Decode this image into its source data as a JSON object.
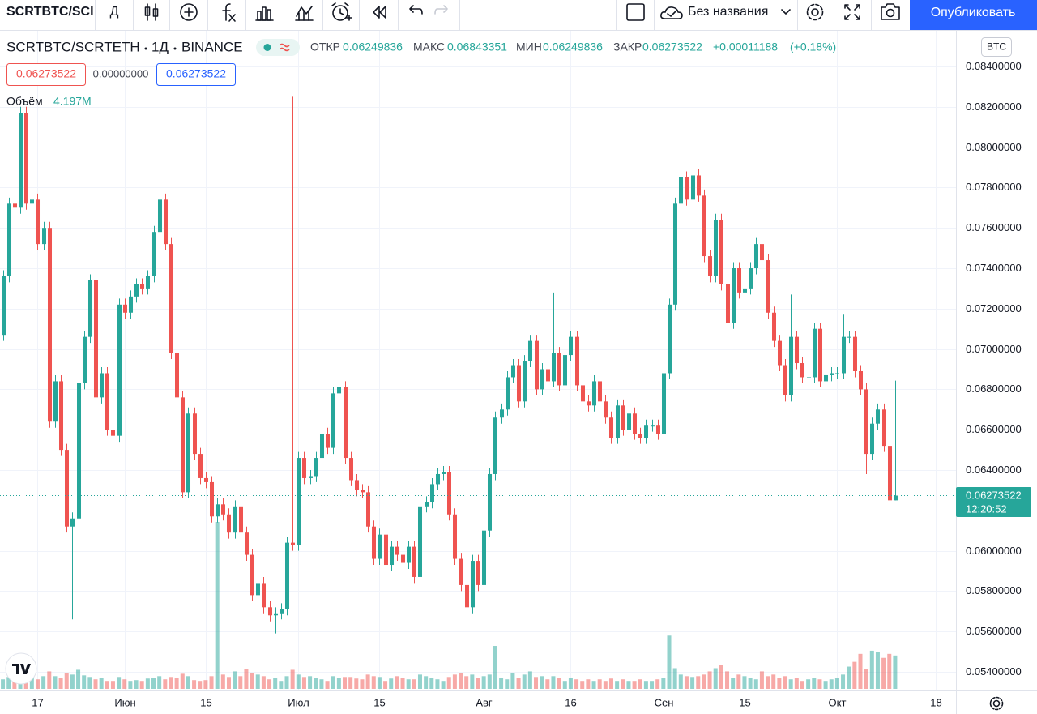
{
  "toolbar": {
    "symbol": "SCRTBTC/SCI",
    "interval": "Д",
    "layout_name": "Без названия",
    "publish": "Опубликовать"
  },
  "legend": {
    "symbol": "SCRTBTC/SCRTETH",
    "interval": "1Д",
    "exchange": "BINANCE",
    "open_label": "ОТКР",
    "open": "0.06249836",
    "high_label": "МАКС",
    "high": "0.06843351",
    "low_label": "МИН",
    "low": "0.06249836",
    "close_label": "ЗАКР",
    "close": "0.06273522",
    "change": "+0.00011188",
    "change_pct": "(+0.18%)",
    "price_boxes": [
      "0.06273522",
      "0.00000000",
      "0.06273522"
    ],
    "volume_label": "Объём",
    "volume": "4.197M"
  },
  "currency": "BTC",
  "last_price": {
    "price": "0.06273522",
    "countdown": "12:20:52"
  },
  "chart_data": {
    "type": "candlestick",
    "grid": true,
    "up_color": "#26a69a",
    "down_color": "#ef5350",
    "xlim": [
      -0.5,
      164.5
    ],
    "xticks": [
      {
        "value": 6,
        "label": "17"
      },
      {
        "value": 21,
        "label": "Июн"
      },
      {
        "value": 35,
        "label": "15"
      },
      {
        "value": 51,
        "label": "Июл"
      },
      {
        "value": 65,
        "label": "15"
      },
      {
        "value": 83,
        "label": "Авг"
      },
      {
        "value": 98,
        "label": "16"
      },
      {
        "value": 114,
        "label": "Сен"
      },
      {
        "value": 128,
        "label": "15"
      },
      {
        "value": 144,
        "label": "Окт"
      },
      {
        "value": 161,
        "label": "18"
      }
    ],
    "ylim": [
      0.053076,
      0.085767
    ],
    "yticks": [
      {
        "value": 0.054,
        "label": "0.05400000"
      },
      {
        "value": 0.056,
        "label": "0.05600000"
      },
      {
        "value": 0.058,
        "label": "0.05800000"
      },
      {
        "value": 0.06,
        "label": "0.06000000"
      },
      {
        "value": 0.062,
        "label": "0.06200000"
      },
      {
        "value": 0.064,
        "label": "0.06400000"
      },
      {
        "value": 0.066,
        "label": "0.06600000"
      },
      {
        "value": 0.068,
        "label": "0.06800000"
      },
      {
        "value": 0.07,
        "label": "0.07000000"
      },
      {
        "value": 0.072,
        "label": "0.07200000"
      },
      {
        "value": 0.074,
        "label": "0.07400000"
      },
      {
        "value": 0.076,
        "label": "0.07600000"
      },
      {
        "value": 0.078,
        "label": "0.07800000"
      },
      {
        "value": 0.08,
        "label": "0.08000000"
      },
      {
        "value": 0.082,
        "label": "0.08200000"
      },
      {
        "value": 0.084,
        "label": "0.08400000"
      }
    ],
    "open": [
      0.0707,
      0.0736,
      0.0772,
      0.077,
      0.0817,
      0.0772,
      0.0774,
      0.0752,
      0.076,
      0.0664,
      0.0684,
      0.065,
      0.0612,
      0.0616,
      0.0683,
      0.0706,
      0.0734,
      0.0676,
      0.0688,
      0.066,
      0.0657,
      0.0722,
      0.0718,
      0.0726,
      0.0732,
      0.073,
      0.0736,
      0.0758,
      0.0774,
      0.0752,
      0.0698,
      0.0676,
      0.0629,
      0.0668,
      0.0648,
      0.0636,
      0.0634,
      0.0617,
      0.0623,
      0.0618,
      0.0609,
      0.0622,
      0.0609,
      0.0598,
      0.0578,
      0.0584,
      0.0572,
      0.0568,
      0.0569,
      0.0571,
      0.0604,
      0.0603,
      0.0646,
      0.0636,
      0.0637,
      0.0646,
      0.0658,
      0.0651,
      0.0678,
      0.0681,
      0.0646,
      0.0635,
      0.063,
      0.0629,
      0.0612,
      0.0596,
      0.0608,
      0.0593,
      0.0602,
      0.0598,
      0.0594,
      0.0602,
      0.0587,
      0.0622,
      0.0624,
      0.0633,
      0.0638,
      0.0639,
      0.0618,
      0.0596,
      0.0583,
      0.0572,
      0.0595,
      0.0583,
      0.061,
      0.0638,
      0.0666,
      0.067,
      0.0686,
      0.0692,
      0.0674,
      0.0694,
      0.0704,
      0.068,
      0.069,
      0.0684,
      0.0698,
      0.0682,
      0.0697,
      0.0706,
      0.0682,
      0.0674,
      0.0672,
      0.0684,
      0.0674,
      0.0666,
      0.0656,
      0.0672,
      0.066,
      0.0668,
      0.0658,
      0.0656,
      0.0662,
      0.0662,
      0.0658,
      0.0688,
      0.0722,
      0.0772,
      0.0785,
      0.0774,
      0.0786,
      0.0776,
      0.0746,
      0.0736,
      0.0764,
      0.0732,
      0.0713,
      0.074,
      0.0728,
      0.073,
      0.074,
      0.0752,
      0.0744,
      0.0718,
      0.0704,
      0.0692,
      0.0677,
      0.0706,
      0.0693,
      0.0686,
      0.0686,
      0.071,
      0.0684,
      0.0687,
      0.0688,
      0.0688,
      0.0706,
      0.0706,
      0.0689,
      0.068,
      0.0648,
      0.0663,
      0.067,
      0.0652,
      0.06249836
    ],
    "high": [
      0.0739,
      0.0775,
      0.0775,
      0.082,
      0.082,
      0.0777,
      0.0777,
      0.0763,
      0.0763,
      0.0687,
      0.0687,
      0.0653,
      0.0619,
      0.0686,
      0.0709,
      0.0737,
      0.0737,
      0.0691,
      0.0691,
      0.0663,
      0.0725,
      0.0725,
      0.0729,
      0.0735,
      0.0735,
      0.0739,
      0.0761,
      0.0777,
      0.0777,
      0.0755,
      0.0701,
      0.0679,
      0.0671,
      0.0671,
      0.0651,
      0.0639,
      0.0637,
      0.0626,
      0.0626,
      0.0621,
      0.0625,
      0.0625,
      0.0612,
      0.0601,
      0.0587,
      0.0587,
      0.0575,
      0.0572,
      0.0574,
      0.0607,
      0.0825,
      0.0649,
      0.0649,
      0.064,
      0.0649,
      0.0661,
      0.0661,
      0.0681,
      0.0684,
      0.0684,
      0.0649,
      0.0638,
      0.0633,
      0.0632,
      0.0615,
      0.0611,
      0.0611,
      0.0605,
      0.0605,
      0.0601,
      0.0605,
      0.0605,
      0.0625,
      0.0627,
      0.0636,
      0.0641,
      0.0642,
      0.0642,
      0.0621,
      0.0599,
      0.0586,
      0.0598,
      0.0598,
      0.0613,
      0.0641,
      0.0669,
      0.0673,
      0.0689,
      0.0695,
      0.0695,
      0.0697,
      0.0707,
      0.0707,
      0.0693,
      0.0693,
      0.0728,
      0.0701,
      0.07,
      0.0709,
      0.0709,
      0.0685,
      0.0677,
      0.0687,
      0.0687,
      0.0677,
      0.0669,
      0.0675,
      0.0675,
      0.0671,
      0.0671,
      0.0661,
      0.0665,
      0.0665,
      0.0665,
      0.0691,
      0.0725,
      0.0775,
      0.0788,
      0.0788,
      0.0789,
      0.0789,
      0.0779,
      0.0749,
      0.0767,
      0.0767,
      0.0735,
      0.0743,
      0.0743,
      0.0733,
      0.0743,
      0.0755,
      0.0755,
      0.0747,
      0.0721,
      0.0707,
      0.0695,
      0.0727,
      0.0709,
      0.0696,
      0.0689,
      0.0713,
      0.0713,
      0.069,
      0.0691,
      0.0691,
      0.0717,
      0.0709,
      0.0709,
      0.0692,
      0.0683,
      0.0666,
      0.0673,
      0.0673,
      0.0655,
      0.06843351
    ],
    "low": [
      0.0704,
      0.0733,
      0.0767,
      0.0767,
      0.0769,
      0.0769,
      0.0749,
      0.0749,
      0.0661,
      0.0661,
      0.0647,
      0.0609,
      0.0566,
      0.0613,
      0.068,
      0.0703,
      0.0673,
      0.0673,
      0.0657,
      0.0654,
      0.0654,
      0.0715,
      0.0715,
      0.0723,
      0.0727,
      0.0727,
      0.0733,
      0.0755,
      0.0749,
      0.0695,
      0.0673,
      0.0626,
      0.0626,
      0.0645,
      0.0633,
      0.0631,
      0.0614,
      0.0614,
      0.0615,
      0.0606,
      0.0606,
      0.0606,
      0.0595,
      0.0575,
      0.0575,
      0.0569,
      0.0565,
      0.0559,
      0.0566,
      0.0568,
      0.06,
      0.06,
      0.0633,
      0.0633,
      0.0634,
      0.0643,
      0.0648,
      0.0648,
      0.0675,
      0.0643,
      0.0632,
      0.0627,
      0.0626,
      0.0609,
      0.0593,
      0.0593,
      0.059,
      0.059,
      0.0595,
      0.0591,
      0.0591,
      0.0584,
      0.0584,
      0.0619,
      0.0621,
      0.063,
      0.0635,
      0.0615,
      0.0593,
      0.058,
      0.0569,
      0.0569,
      0.058,
      0.058,
      0.0607,
      0.0635,
      0.0663,
      0.0667,
      0.0683,
      0.0671,
      0.0671,
      0.0691,
      0.0677,
      0.0677,
      0.0681,
      0.0681,
      0.0679,
      0.0679,
      0.0694,
      0.0679,
      0.0671,
      0.0669,
      0.0669,
      0.0671,
      0.0663,
      0.0653,
      0.0653,
      0.0657,
      0.0657,
      0.0655,
      0.0653,
      0.0653,
      0.0659,
      0.0655,
      0.0655,
      0.0685,
      0.0719,
      0.0769,
      0.0771,
      0.0771,
      0.0773,
      0.0743,
      0.0733,
      0.0733,
      0.0729,
      0.071,
      0.071,
      0.0725,
      0.0725,
      0.0727,
      0.0737,
      0.0741,
      0.0715,
      0.0701,
      0.0689,
      0.0674,
      0.0674,
      0.069,
      0.0683,
      0.0683,
      0.0683,
      0.0681,
      0.0681,
      0.0684,
      0.0685,
      0.0685,
      0.0703,
      0.0686,
      0.0677,
      0.0638,
      0.0645,
      0.066,
      0.0649,
      0.0622,
      0.06249836
    ],
    "close": [
      0.0736,
      0.0772,
      0.077,
      0.0817,
      0.0772,
      0.0774,
      0.0752,
      0.076,
      0.0664,
      0.0684,
      0.065,
      0.0612,
      0.0616,
      0.0683,
      0.0706,
      0.0734,
      0.0676,
      0.0688,
      0.066,
      0.0657,
      0.0722,
      0.0718,
      0.0726,
      0.0732,
      0.073,
      0.0736,
      0.0758,
      0.0774,
      0.0752,
      0.0698,
      0.0676,
      0.0629,
      0.0668,
      0.0648,
      0.0636,
      0.0634,
      0.0617,
      0.0623,
      0.0618,
      0.0609,
      0.0622,
      0.0609,
      0.0598,
      0.0578,
      0.0584,
      0.0572,
      0.0568,
      0.0569,
      0.0571,
      0.0604,
      0.0603,
      0.0646,
      0.0636,
      0.0637,
      0.0646,
      0.0658,
      0.0651,
      0.0678,
      0.0681,
      0.0646,
      0.0635,
      0.063,
      0.0629,
      0.0612,
      0.0596,
      0.0608,
      0.0593,
      0.0602,
      0.0598,
      0.0594,
      0.0602,
      0.0587,
      0.0622,
      0.0624,
      0.0633,
      0.0638,
      0.0639,
      0.0618,
      0.0596,
      0.0583,
      0.0572,
      0.0595,
      0.0583,
      0.061,
      0.0638,
      0.0666,
      0.067,
      0.0686,
      0.0692,
      0.0674,
      0.0694,
      0.0704,
      0.068,
      0.069,
      0.0684,
      0.0698,
      0.0682,
      0.0697,
      0.0706,
      0.0682,
      0.0674,
      0.0672,
      0.0684,
      0.0674,
      0.0666,
      0.0656,
      0.0672,
      0.066,
      0.0668,
      0.0658,
      0.0656,
      0.0662,
      0.0662,
      0.0658,
      0.0688,
      0.0722,
      0.0772,
      0.0785,
      0.0774,
      0.0786,
      0.0776,
      0.0746,
      0.0736,
      0.0764,
      0.0732,
      0.0713,
      0.074,
      0.0728,
      0.073,
      0.074,
      0.0752,
      0.0744,
      0.0718,
      0.0704,
      0.0692,
      0.0677,
      0.0706,
      0.0693,
      0.0686,
      0.0686,
      0.071,
      0.0684,
      0.0687,
      0.0688,
      0.0688,
      0.0706,
      0.0706,
      0.0689,
      0.068,
      0.0648,
      0.0663,
      0.067,
      0.0652,
      0.0625,
      0.06273522
    ],
    "volume": [
      1.2,
      1.5,
      1.0,
      3.0,
      1.8,
      1.4,
      1.2,
      1.6,
      2.2,
      1.6,
      1.4,
      2.0,
      1.8,
      2.4,
      1.7,
      1.5,
      1.2,
      1.4,
      1.0,
      1.0,
      1.5,
      1.2,
      1.0,
      1.1,
      1.0,
      1.3,
      1.4,
      1.6,
      1.2,
      1.5,
      1.4,
      1.9,
      1.6,
      1.1,
      1.0,
      1.1,
      1.6,
      21.0,
      1.8,
      1.5,
      2.2,
      1.6,
      2.5,
      2.0,
      1.8,
      1.6,
      1.2,
      1.4,
      1.0,
      1.6,
      2.4,
      1.8,
      1.5,
      1.6,
      1.4,
      1.2,
      1.0,
      1.6,
      1.4,
      1.5,
      1.5,
      1.3,
      1.2,
      1.8,
      1.6,
      1.5,
      1.0,
      1.3,
      1.6,
      1.4,
      1.2,
      1.2,
      1.8,
      1.6,
      1.4,
      1.2,
      1.0,
      1.5,
      1.8,
      2.0,
      1.6,
      1.8,
      1.4,
      1.6,
      1.8,
      5.4,
      1.4,
      1.2,
      2.0,
      1.4,
      1.8,
      2.2,
      1.5,
      1.6,
      1.2,
      1.6,
      1.4,
      1.0,
      1.4,
      1.2,
      1.0,
      1.2,
      1.0,
      1.2,
      1.0,
      1.3,
      1.0,
      1.2,
      1.0,
      1.0,
      1.2,
      1.0,
      1.0,
      1.2,
      1.4,
      6.7,
      2.6,
      1.8,
      1.6,
      1.5,
      1.6,
      1.8,
      2.2,
      2.6,
      3.0,
      2.2,
      1.4,
      1.8,
      1.6,
      1.4,
      1.2,
      2.2,
      1.6,
      1.8,
      1.4,
      1.6,
      1.2,
      1.4,
      1.0,
      1.2,
      1.4,
      1.2,
      1.0,
      1.2,
      1.4,
      1.8,
      2.8,
      3.4,
      4.4,
      2.5,
      4.8,
      4.6,
      3.9,
      4.4,
      4.197
    ]
  }
}
